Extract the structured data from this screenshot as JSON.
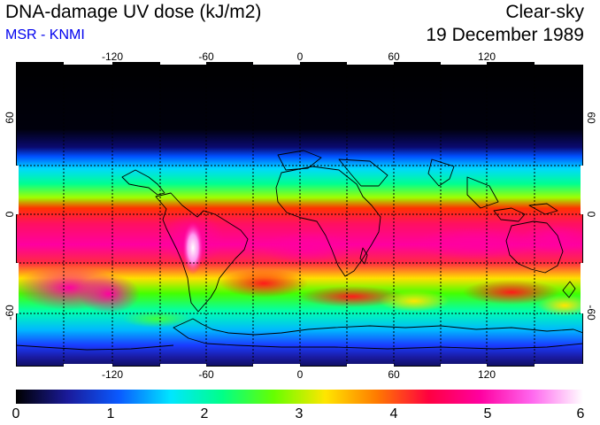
{
  "header": {
    "title": "DNA-damage UV dose (kJ/m2)",
    "source": "MSR - KNMI",
    "condition": "Clear-sky",
    "date": "19 December 1989"
  },
  "map": {
    "lon_ticks": [
      "-120",
      "-60",
      "0",
      "60",
      "120"
    ],
    "lat_ticks_left": [
      "60",
      "0",
      "-60"
    ],
    "lat_ticks_right": [
      "60",
      "0",
      "-60"
    ],
    "extent": {
      "lon_min": -180,
      "lon_max": 180,
      "lat_min": -90,
      "lat_max": 90
    }
  },
  "colorbar": {
    "ticks": [
      "0",
      "1",
      "2",
      "3",
      "4",
      "5",
      "6"
    ],
    "min": 0,
    "max": 6,
    "colors": [
      "#000000",
      "#1a1a9a",
      "#0a5aff",
      "#00e6ff",
      "#00ff88",
      "#66ff00",
      "#ffe600",
      "#ff7a00",
      "#ff0040",
      "#ff00a0",
      "#ff66ee",
      "#ffffff"
    ]
  }
}
